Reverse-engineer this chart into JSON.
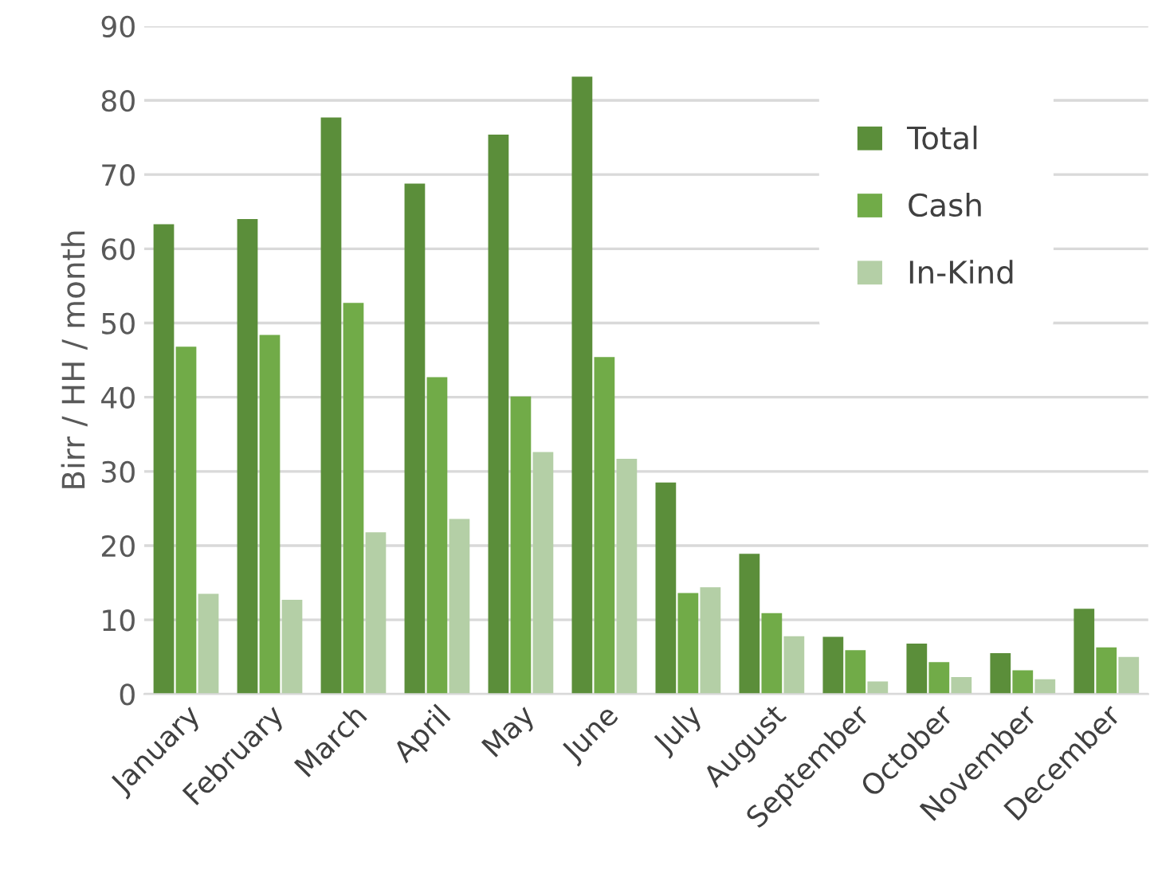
{
  "chart_data": {
    "type": "bar",
    "ylabel": "Birr / HH / month",
    "categories": [
      "January",
      "February",
      "March",
      "April",
      "May",
      "June",
      "July",
      "August",
      "September",
      "October",
      "November",
      "December"
    ],
    "series": [
      {
        "name": "Total",
        "color": "#5b8e3a",
        "values": [
          63.3,
          64.0,
          77.7,
          68.8,
          75.4,
          83.2,
          28.5,
          18.9,
          7.7,
          6.8,
          5.5,
          11.5
        ]
      },
      {
        "name": "Cash",
        "color": "#71ab48",
        "values": [
          46.8,
          48.4,
          52.7,
          42.7,
          40.1,
          45.4,
          13.6,
          10.9,
          5.9,
          4.3,
          3.2,
          6.3
        ]
      },
      {
        "name": "In-Kind",
        "color": "#b4cfa6",
        "values": [
          13.5,
          12.7,
          21.8,
          23.6,
          32.6,
          31.7,
          14.4,
          7.8,
          1.7,
          2.3,
          2.0,
          5.0
        ]
      }
    ],
    "ylim": [
      0,
      90
    ],
    "yticks": [
      0,
      10,
      20,
      30,
      40,
      50,
      60,
      70,
      80,
      90
    ],
    "grid": "y",
    "legend": "top right"
  }
}
